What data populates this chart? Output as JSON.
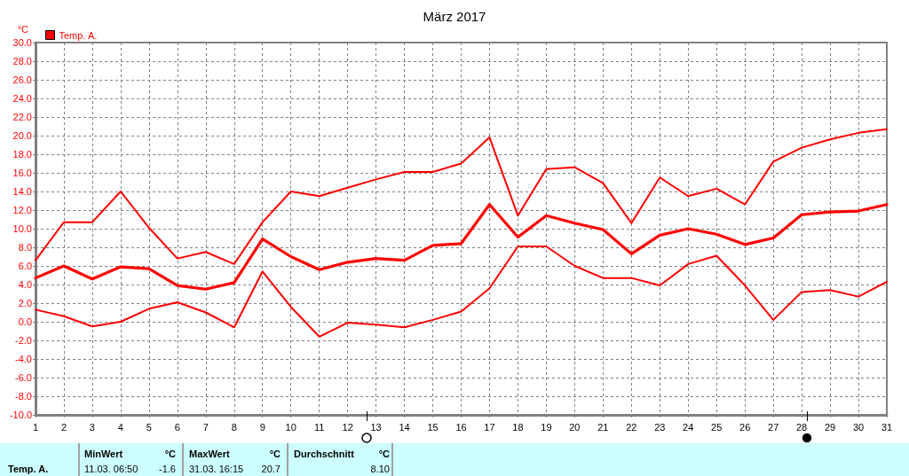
{
  "chart_data": {
    "type": "line",
    "title": "März 2017",
    "ylabel": "°C",
    "x": [
      1,
      2,
      3,
      4,
      5,
      6,
      7,
      8,
      9,
      10,
      11,
      12,
      13,
      14,
      15,
      16,
      17,
      18,
      19,
      20,
      21,
      22,
      23,
      24,
      25,
      26,
      27,
      28,
      29,
      30,
      31
    ],
    "series": [
      {
        "color": "#ff0000",
        "values": [
          6.6,
          10.7,
          10.7,
          14.0,
          10.1,
          6.8,
          7.5,
          6.2,
          10.7,
          14.0,
          13.5,
          14.4,
          15.3,
          16.1,
          16.1,
          17.0,
          19.8,
          11.4,
          16.4,
          16.6,
          14.9,
          10.6,
          15.5,
          13.5,
          14.3,
          12.6,
          17.2,
          18.7,
          19.6,
          20.3,
          20.7
        ]
      },
      {
        "name": "Temp. A.",
        "color": "#ff0000",
        "values": [
          4.7,
          6.0,
          4.6,
          5.9,
          5.7,
          3.9,
          3.5,
          4.2,
          8.9,
          7.0,
          5.6,
          6.4,
          6.8,
          6.6,
          8.2,
          8.4,
          12.6,
          9.1,
          11.4,
          10.6,
          9.9,
          7.3,
          9.3,
          10.0,
          9.4,
          8.3,
          9.0,
          11.5,
          11.8,
          11.9,
          12.6
        ]
      },
      {
        "color": "#ff0000",
        "values": [
          1.3,
          0.6,
          -0.5,
          0.0,
          1.4,
          2.1,
          1.0,
          -0.6,
          5.4,
          1.6,
          -1.6,
          -0.1,
          -0.3,
          -0.6,
          0.2,
          1.1,
          3.6,
          8.1,
          8.1,
          6.0,
          4.7,
          4.7,
          3.9,
          6.2,
          7.1,
          3.9,
          0.2,
          3.2,
          3.4,
          2.7,
          4.3
        ]
      }
    ],
    "xlim": [
      1,
      31
    ],
    "xticks": [
      1,
      2,
      3,
      4,
      5,
      6,
      7,
      8,
      9,
      10,
      11,
      12,
      13,
      14,
      15,
      16,
      17,
      18,
      19,
      20,
      21,
      22,
      23,
      24,
      25,
      26,
      27,
      28,
      29,
      30,
      31
    ],
    "ylim": [
      -10,
      30
    ],
    "yticks": [
      {
        "value": -10,
        "label": "-10.0"
      },
      {
        "value": -8,
        "label": "-8.0"
      },
      {
        "value": -6,
        "label": "-6.0"
      },
      {
        "value": -4,
        "label": "-4.0"
      },
      {
        "value": -2,
        "label": "-2.0"
      },
      {
        "value": 0,
        "label": "0.0"
      },
      {
        "value": 2,
        "label": "2.0"
      },
      {
        "value": 4,
        "label": "4.0"
      },
      {
        "value": 6,
        "label": "6.0"
      },
      {
        "value": 8,
        "label": "8.0"
      },
      {
        "value": 10,
        "label": "10.0"
      },
      {
        "value": 12,
        "label": "12.0"
      },
      {
        "value": 14,
        "label": "14.0"
      },
      {
        "value": 16,
        "label": "16.0"
      },
      {
        "value": 18,
        "label": "18.0"
      },
      {
        "value": 20,
        "label": "20.0"
      },
      {
        "value": 22,
        "label": "22.0"
      },
      {
        "value": 24,
        "label": "24.0"
      },
      {
        "value": 26,
        "label": "26.0"
      },
      {
        "value": 28,
        "label": "28.0"
      },
      {
        "value": 30,
        "label": "30.0"
      }
    ],
    "grid": true,
    "legend": "top left",
    "marker": "none",
    "annotations": [
      "Temp. A.",
      "MinWert",
      "°C",
      "11.03. 06:50",
      "-1.6",
      "MaxWert",
      "°C",
      "31.03. 16:15",
      "20.7",
      "Durchschnitt",
      "°C",
      "8.10"
    ]
  }
}
